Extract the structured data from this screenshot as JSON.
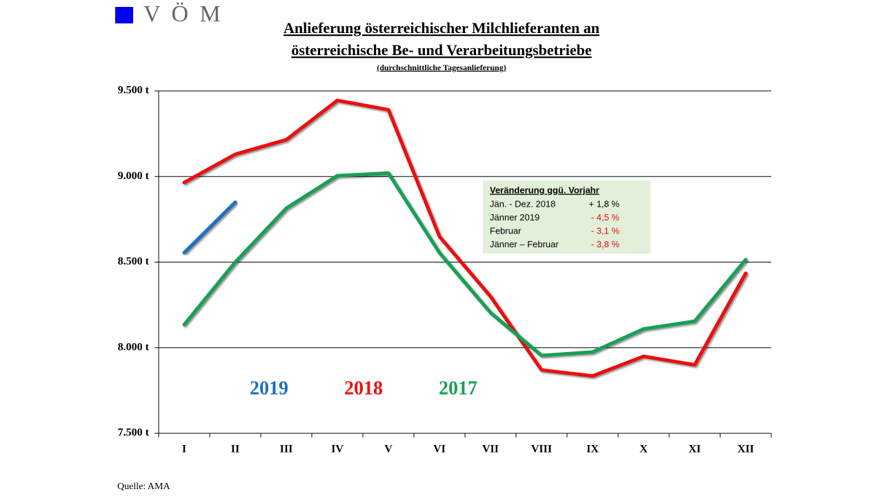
{
  "chart_data": {
    "type": "line",
    "logo": "V Ö M",
    "title": [
      "Anlieferung österreichischer Milchlieferanten  an",
      "österreichische Be- und Verarbeitungsbetriebe"
    ],
    "subtitle": "(durchschnittliche  Tagesanlieferung)",
    "categories": [
      "I",
      "II",
      "III",
      "IV",
      "V",
      "VI",
      "VII",
      "VIII",
      "IX",
      "X",
      "XI",
      "XII"
    ],
    "series": [
      {
        "name": "2019",
        "color": "#1f6fbf",
        "values": [
          8555,
          8850,
          null,
          null,
          null,
          null,
          null,
          null,
          null,
          null,
          null,
          null
        ]
      },
      {
        "name": "2018",
        "color": "#ee1111",
        "values": [
          8965,
          9130,
          9215,
          9445,
          9390,
          8650,
          8300,
          7870,
          7835,
          7950,
          7900,
          8435
        ]
      },
      {
        "name": "2017",
        "color": "#18a055",
        "values": [
          8135,
          8500,
          8815,
          9005,
          9020,
          8555,
          8205,
          7955,
          7975,
          8110,
          8155,
          8515
        ]
      }
    ],
    "ylim": [
      7500,
      9500
    ],
    "yticks": [
      {
        "value": 7500,
        "label": "7.500 t"
      },
      {
        "value": 8000,
        "label": "8.000 t"
      },
      {
        "value": 8500,
        "label": "8.500 t"
      },
      {
        "value": 9000,
        "label": "9.000 t"
      },
      {
        "value": 9500,
        "label": "9.500 t"
      }
    ],
    "grid": true,
    "annotation_box": {
      "title": "Veränderung ggü. Vorjahr",
      "rows": [
        {
          "label": "Jän. - Dez. 2018",
          "value": "+ 1,8 %",
          "color": "#000000"
        },
        {
          "label": "Jänner 2019",
          "value": "- 4,5 %",
          "color": "#dd1111"
        },
        {
          "label": "Februar",
          "value": "- 3,1 %",
          "color": "#dd1111"
        },
        {
          "label": "Jänner – Februar",
          "value": "- 3,8 %",
          "color": "#dd1111"
        }
      ]
    },
    "source": "Quelle:  AMA"
  }
}
